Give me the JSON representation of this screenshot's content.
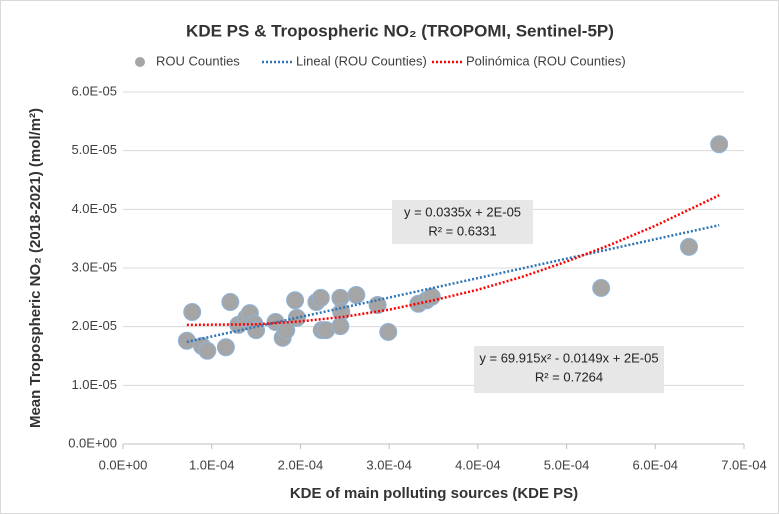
{
  "chart_data": {
    "type": "scatter",
    "title": "KDE PS & Tropospheric NO₂ (TROPOMI, Sentinel-5P)",
    "xlabel": "KDE of main polluting sources (KDE PS)",
    "ylabel": "Mean Tropospheric NO₂ (2018-2021)  (mol/m²)",
    "xlim": [
      0,
      0.0007
    ],
    "xticks": [
      {
        "value": 0,
        "label": "0.0E+00"
      },
      {
        "value": 0.0001,
        "label": "1.0E-04"
      },
      {
        "value": 0.0002,
        "label": "2.0E-04"
      },
      {
        "value": 0.0003,
        "label": "3.0E-04"
      },
      {
        "value": 0.0004,
        "label": "4.0E-04"
      },
      {
        "value": 0.0005,
        "label": "5.0E-04"
      },
      {
        "value": 0.0006,
        "label": "6.0E-04"
      },
      {
        "value": 0.0007,
        "label": "7.0E-04"
      }
    ],
    "ylim": [
      0,
      6e-05
    ],
    "yticks": [
      {
        "value": 0,
        "label": "0.0E+00"
      },
      {
        "value": 1e-05,
        "label": "1.0E-05"
      },
      {
        "value": 2e-05,
        "label": "2.0E-05"
      },
      {
        "value": 3e-05,
        "label": "3.0E-05"
      },
      {
        "value": 4e-05,
        "label": "4.0E-05"
      },
      {
        "value": 5e-05,
        "label": "5.0E-05"
      },
      {
        "value": 6e-05,
        "label": "6.0E-05"
      }
    ],
    "grid": true,
    "legend": "top",
    "series": [
      {
        "name": "ROU Counties",
        "color": "#a5a5a5",
        "x": [
          7.2e-05,
          7.8e-05,
          8.9e-05,
          9.5e-05,
          0.000116,
          0.000121,
          0.00013,
          0.000139,
          0.000143,
          0.000148,
          0.00015,
          0.000172,
          0.00018,
          0.000184,
          0.000194,
          0.000196,
          0.000218,
          0.000223,
          0.000224,
          0.000229,
          0.000245,
          0.000246,
          0.000245,
          0.000263,
          0.000287,
          0.000299,
          0.000333,
          0.000342,
          0.000348,
          0.000539,
          0.000638,
          0.000672
        ],
        "values": [
          1.76e-05,
          2.25e-05,
          1.67e-05,
          1.59e-05,
          1.65e-05,
          2.42e-05,
          2.03e-05,
          2.15e-05,
          2.23e-05,
          2.05e-05,
          1.94e-05,
          2.08e-05,
          1.81e-05,
          1.94e-05,
          2.45e-05,
          2.15e-05,
          2.42e-05,
          2.49e-05,
          1.94e-05,
          1.94e-05,
          2.49e-05,
          2.25e-05,
          2.01e-05,
          2.54e-05,
          2.37e-05,
          1.91e-05,
          2.39e-05,
          2.45e-05,
          2.51e-05,
          2.66e-05,
          3.36e-05,
          5.11e-05
        ]
      },
      {
        "name": "Lineal (ROU Counties)",
        "color": "#2e75b6",
        "type": "line",
        "x": [
          7.2e-05,
          0.000672
        ],
        "values": [
          1.74e-05,
          3.73e-05
        ]
      },
      {
        "name": "Polinómica (ROU Counties)",
        "color": "#ff0000",
        "type": "line",
        "x": [
          7.2e-05,
          0.00015,
          0.0002,
          0.00025,
          0.0003,
          0.00035,
          0.0004,
          0.00045,
          0.0005,
          0.00055,
          0.0006,
          0.00065,
          0.000672
        ],
        "values": [
          2.03e-05,
          2.04e-05,
          2.09e-05,
          2.17e-05,
          2.29e-05,
          2.45e-05,
          2.63e-05,
          2.85e-05,
          3.11e-05,
          3.4e-05,
          3.72e-05,
          4.08e-05,
          4.24e-05
        ]
      }
    ],
    "annotations": [
      [
        "y = 0.0335x + 2E-05",
        "R² = 0.6331"
      ],
      [
        "y = 69.915x² - 0.0149x + 2E-05",
        "R² = 0.7264"
      ]
    ]
  }
}
